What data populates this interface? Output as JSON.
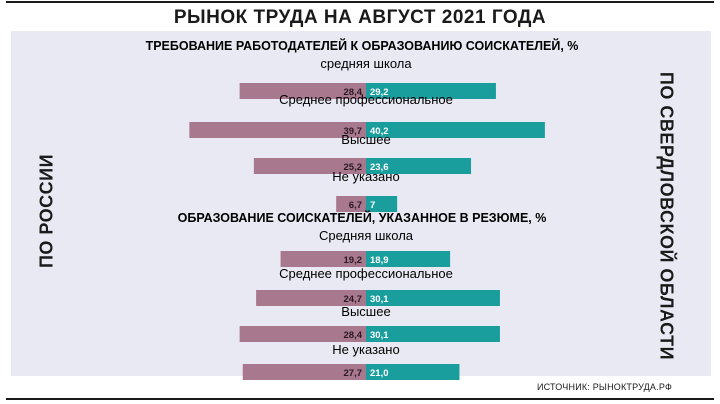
{
  "header": {
    "title": "РЫНОК ТРУДА НА АВГУСТ 2021 ГОДА",
    "left_label": "ПО РОССИИ",
    "right_label": "ПО СВЕРДЛОВСКОЙ ОБЛАСТИ",
    "source": "ИСТОЧНИК: РЫНОКТРУДА.РФ"
  },
  "colors": {
    "russia": "#a8788f",
    "sverdlovsk": "#1a9e9d",
    "panel": "#e9e9f3"
  },
  "chart_data": [
    {
      "type": "bar",
      "title": "ТРЕБОВАНИЕ РАБОТОДАТЕЛЕЙ К ОБРАЗОВАНИЮ СОИСКАТЕЛЕЙ, %",
      "categories": [
        "средняя школа",
        "Среднее профессиональное",
        "Высшее",
        "Не указано"
      ],
      "series": [
        {
          "name": "ПО РОССИИ",
          "values": [
            28.4,
            39.7,
            25.2,
            6.7
          ],
          "labels": [
            "28,4",
            "39,7",
            "25,2",
            "6,7"
          ]
        },
        {
          "name": "ПО СВЕРДЛОВСКОЙ ОБЛАСТИ",
          "values": [
            29.2,
            40.2,
            23.6,
            7
          ],
          "labels": [
            "29,2",
            "40,2",
            "23,6",
            "7"
          ]
        }
      ]
    },
    {
      "type": "bar",
      "title": "ОБРАЗОВАНИЕ СОИСКАТЕЛЕЙ, УКАЗАННОЕ В РЕЗЮМЕ, %",
      "categories": [
        "Средняя школа",
        "Среднее профессиональное",
        "Высшее",
        "Не указано"
      ],
      "series": [
        {
          "name": "ПО РОССИИ",
          "values": [
            19.2,
            24.7,
            28.4,
            27.7
          ],
          "labels": [
            "19,2",
            "24,7",
            "28,4",
            "27,7"
          ]
        },
        {
          "name": "ПО СВЕРДЛОВСКОЙ ОБЛАСТИ",
          "values": [
            18.9,
            30.1,
            30.1,
            21.0
          ],
          "labels": [
            "18,9",
            "30,1",
            "30,1",
            "21,0"
          ]
        }
      ]
    }
  ]
}
